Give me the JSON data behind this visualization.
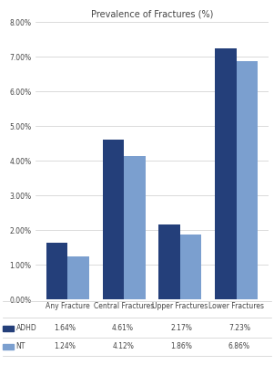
{
  "title": "Prevalence of Fractures (%)",
  "categories": [
    "Any Fracture",
    "Central Fractures",
    "Upper Fractures",
    "Lower Fractures"
  ],
  "adhd_values": [
    1.64,
    4.61,
    2.17,
    7.23
  ],
  "nt_values": [
    1.24,
    4.12,
    1.86,
    6.86
  ],
  "adhd_label": "ADHD",
  "nt_label": "NT",
  "adhd_color": "#243F7A",
  "nt_color": "#7B9FCF",
  "ylim": [
    0,
    8.0
  ],
  "yticks": [
    0,
    1.0,
    2.0,
    3.0,
    4.0,
    5.0,
    6.0,
    7.0,
    8.0
  ],
  "title_fontsize": 7,
  "tick_fontsize": 5.5,
  "legend_fontsize": 5.5,
  "label_fontsize": 5.5,
  "bar_width": 0.38,
  "background_color": "#ffffff",
  "grid_color": "#cccccc"
}
